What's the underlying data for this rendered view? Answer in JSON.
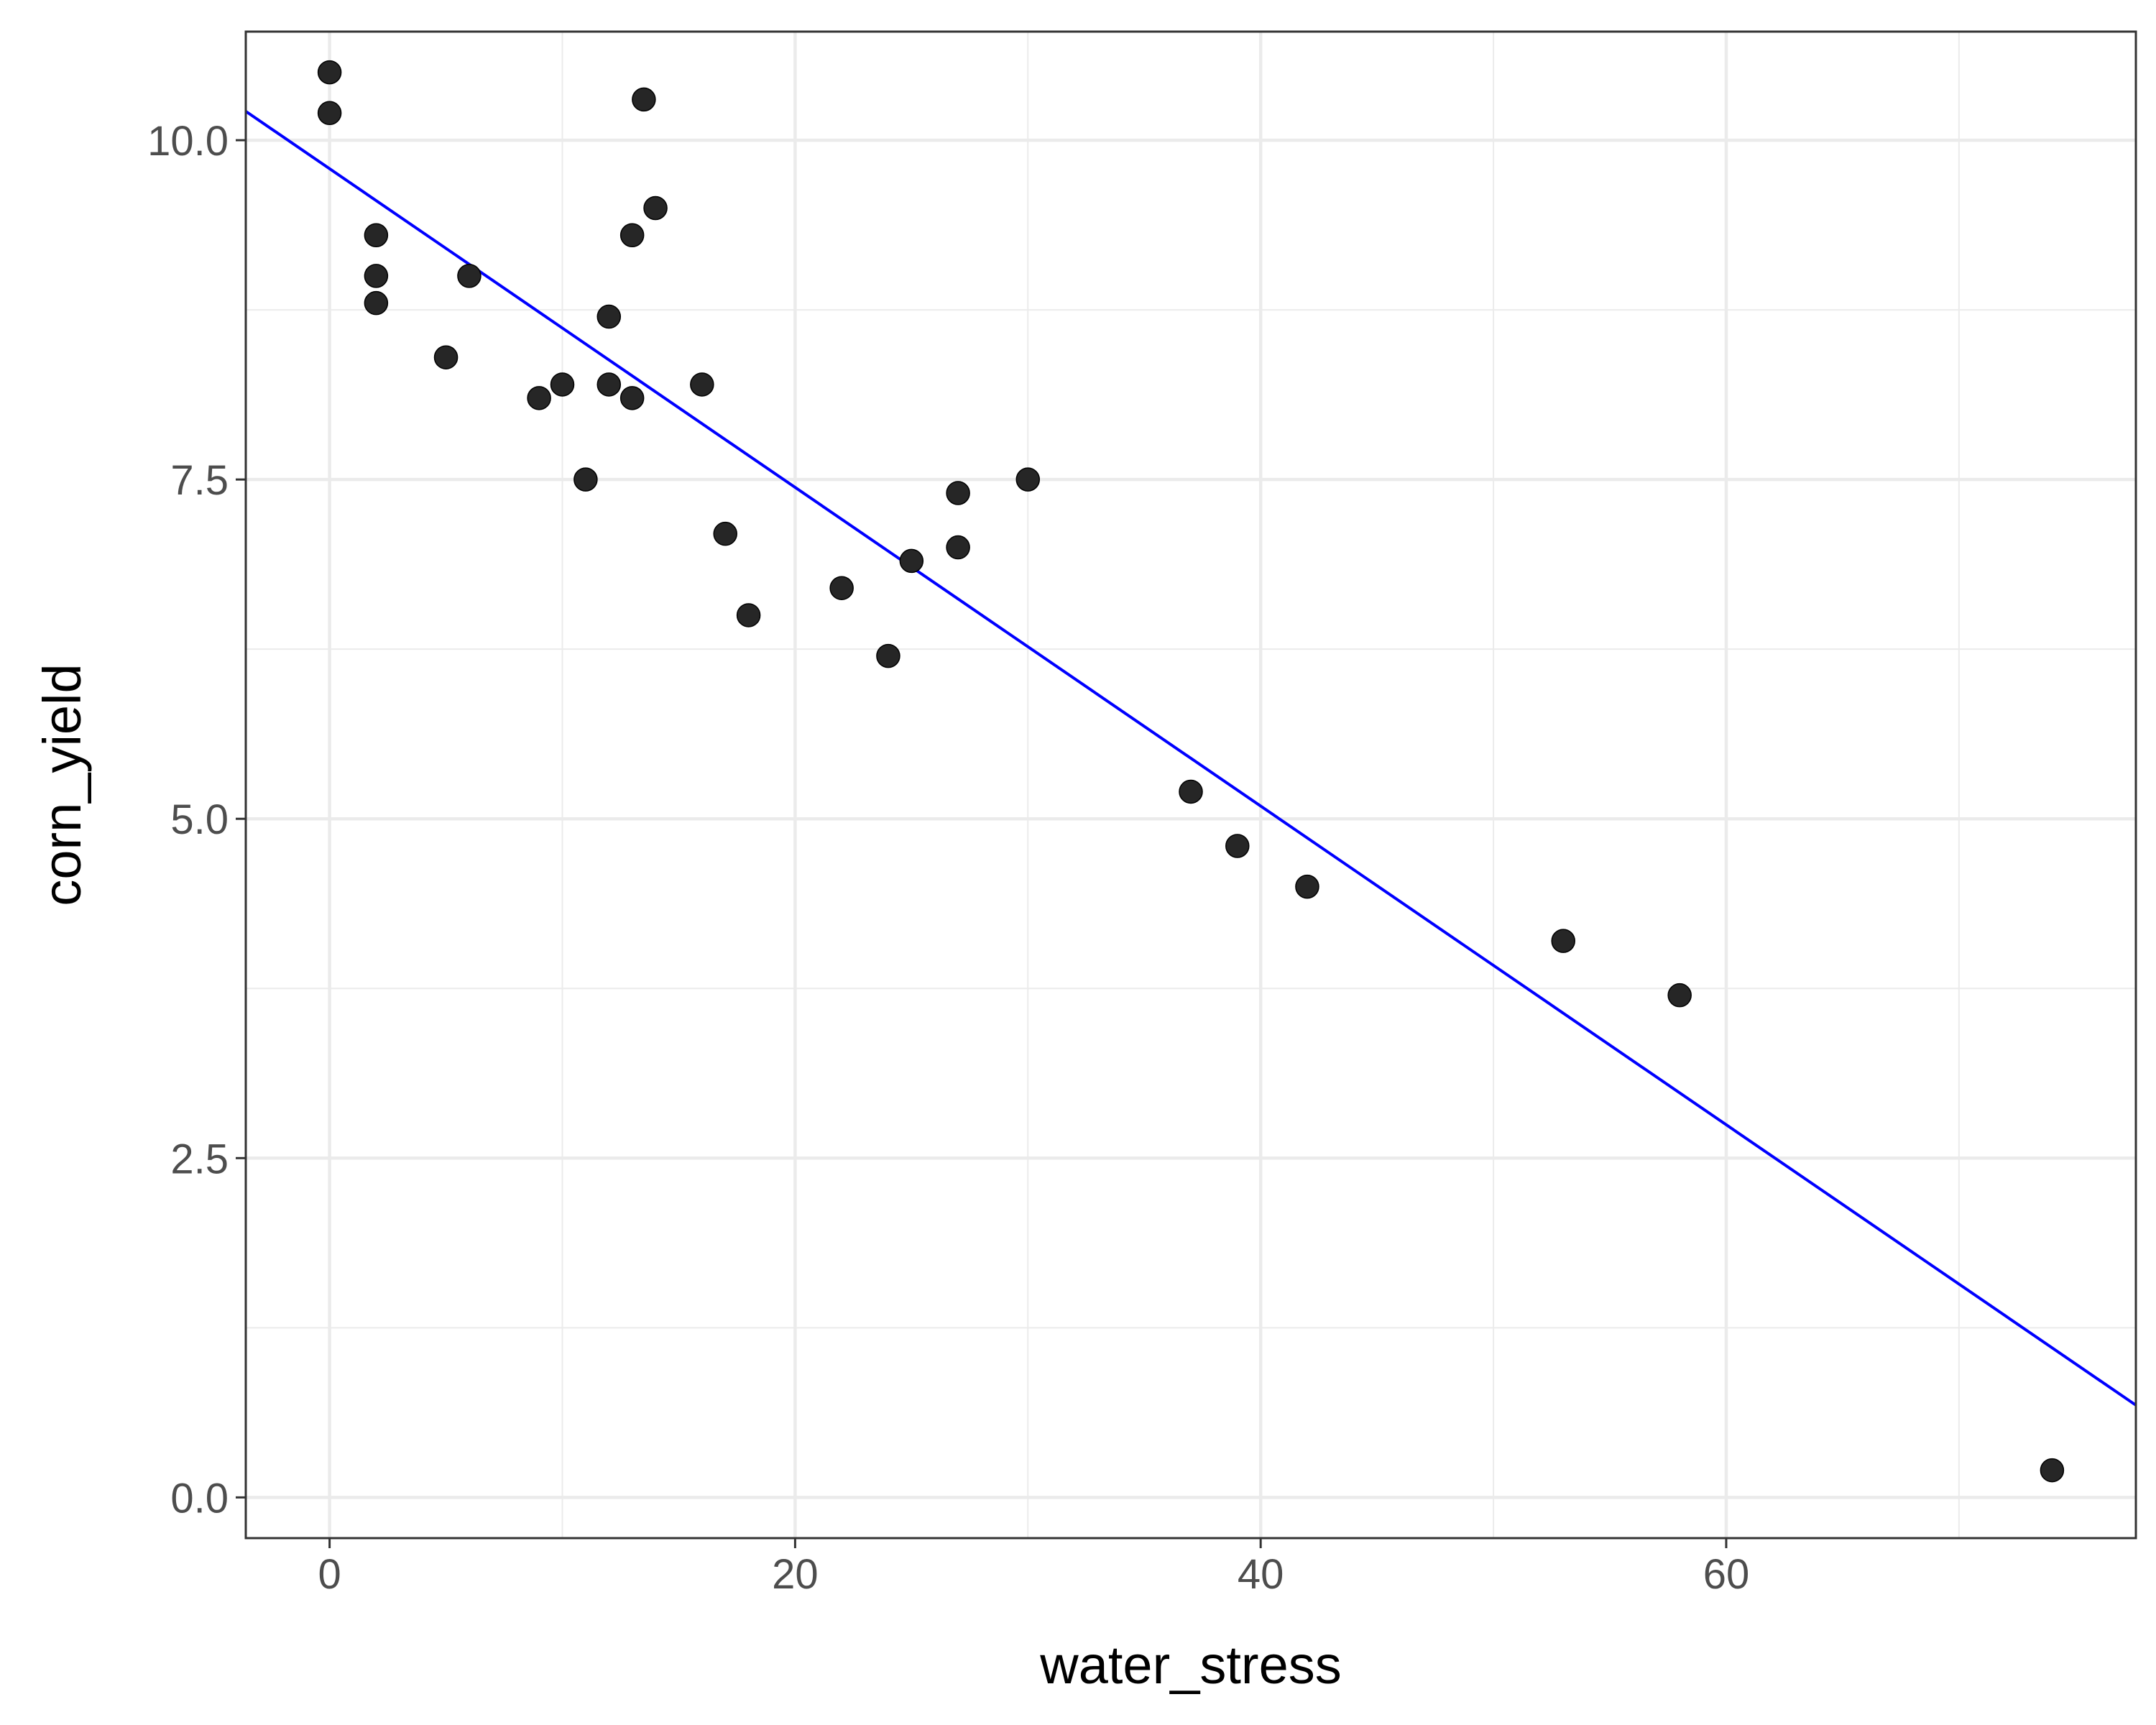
{
  "chart_data": {
    "type": "scatter",
    "xlabel": "water_stress",
    "ylabel": "corn_yield",
    "xlim": [
      -3.6,
      77.6
    ],
    "ylim": [
      -0.3,
      10.8
    ],
    "x_ticks": [
      0,
      20,
      40,
      60
    ],
    "x_tick_labels": [
      "0",
      "20",
      "40",
      "60"
    ],
    "x_minor_ticks": [
      10,
      30,
      50,
      70
    ],
    "y_ticks": [
      0,
      2.5,
      5,
      7.5,
      10
    ],
    "y_tick_labels": [
      "0.0",
      "2.5",
      "5.0",
      "7.5",
      "10.0"
    ],
    "y_minor_ticks": [
      1.25,
      3.75,
      6.25,
      8.75
    ],
    "grid": true,
    "points": [
      {
        "x": 0,
        "y": 10.5
      },
      {
        "x": 0,
        "y": 10.2
      },
      {
        "x": 2,
        "y": 9.3
      },
      {
        "x": 2,
        "y": 9.0
      },
      {
        "x": 2,
        "y": 8.8
      },
      {
        "x": 5,
        "y": 8.4
      },
      {
        "x": 6,
        "y": 9.0
      },
      {
        "x": 9,
        "y": 8.1
      },
      {
        "x": 10,
        "y": 8.2
      },
      {
        "x": 11,
        "y": 7.5
      },
      {
        "x": 12,
        "y": 8.7
      },
      {
        "x": 12,
        "y": 8.2
      },
      {
        "x": 13,
        "y": 9.3
      },
      {
        "x": 13,
        "y": 8.1
      },
      {
        "x": 13.5,
        "y": 10.3
      },
      {
        "x": 14,
        "y": 9.5
      },
      {
        "x": 16,
        "y": 8.2
      },
      {
        "x": 17,
        "y": 7.1
      },
      {
        "x": 18,
        "y": 6.5
      },
      {
        "x": 22,
        "y": 6.7
      },
      {
        "x": 24,
        "y": 6.2
      },
      {
        "x": 25,
        "y": 6.9
      },
      {
        "x": 27,
        "y": 7.4
      },
      {
        "x": 27,
        "y": 7.0
      },
      {
        "x": 30,
        "y": 7.5
      },
      {
        "x": 37,
        "y": 5.2
      },
      {
        "x": 39,
        "y": 4.8
      },
      {
        "x": 42,
        "y": 4.5
      },
      {
        "x": 53,
        "y": 4.1
      },
      {
        "x": 58,
        "y": 3.7
      },
      {
        "x": 74,
        "y": 0.2
      }
    ],
    "point_color": "#262626",
    "fit_line": {
      "intercept": 9.79,
      "slope": -0.1174,
      "color": "#0000ff"
    },
    "panel_border_color": "#333333",
    "grid_color": "#ebebeb"
  }
}
